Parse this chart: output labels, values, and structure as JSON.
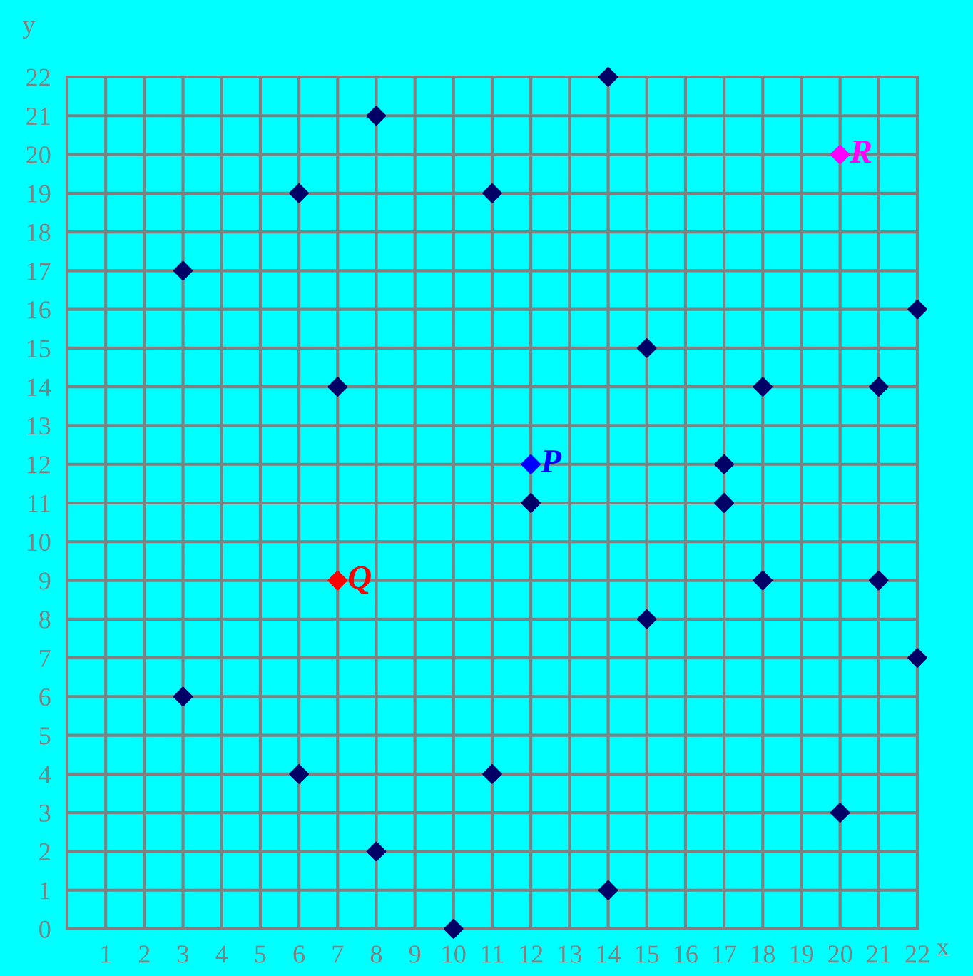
{
  "chart_data": {
    "type": "scatter",
    "xlabel": "x",
    "ylabel": "y",
    "xlim": [
      0,
      22
    ],
    "ylim": [
      0,
      22
    ],
    "xticks": [
      1,
      2,
      3,
      4,
      5,
      6,
      7,
      8,
      9,
      10,
      11,
      12,
      13,
      14,
      15,
      16,
      17,
      18,
      19,
      20,
      21,
      22
    ],
    "yticks": [
      0,
      1,
      2,
      3,
      4,
      5,
      6,
      7,
      8,
      9,
      10,
      11,
      12,
      13,
      14,
      15,
      16,
      17,
      18,
      19,
      20,
      21,
      22
    ],
    "grid": true,
    "marker": "diamond",
    "series": [
      {
        "color": "#000066",
        "x": [
          14,
          8,
          6,
          11,
          3,
          22,
          15,
          7,
          18,
          21,
          17,
          12,
          17,
          18,
          21,
          15,
          22,
          3,
          6,
          11,
          8,
          20,
          14,
          10
        ],
        "values": [
          22,
          21,
          19,
          19,
          17,
          16,
          15,
          14,
          14,
          14,
          12,
          11,
          11,
          9,
          9,
          8,
          7,
          6,
          4,
          4,
          2,
          3,
          1,
          0
        ]
      },
      {
        "name": "P",
        "color": "#0000ff",
        "x": [
          12
        ],
        "values": [
          12
        ]
      },
      {
        "name": "Q",
        "color": "#ff0000",
        "x": [
          7
        ],
        "values": [
          9
        ]
      },
      {
        "name": "R",
        "color": "#ff00ff",
        "x": [
          20
        ],
        "values": [
          20
        ]
      }
    ]
  }
}
